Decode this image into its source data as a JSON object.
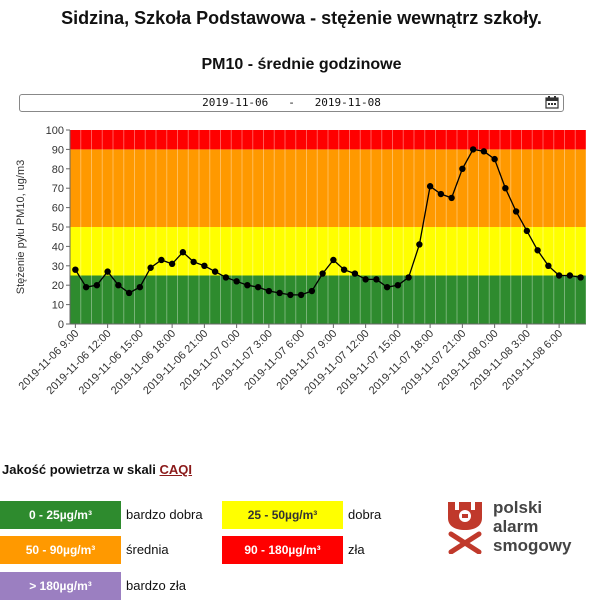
{
  "header": {
    "title": "Sidzina, Szkoła Podstawowa - stężenie wewnątrz szkoły.",
    "subtitle": "PM10 - średnie godzinowe"
  },
  "date_range": {
    "start": "2019-11-06",
    "separator": "-",
    "end": "2019-11-08"
  },
  "chart_data": {
    "type": "line",
    "title": "PM10 - średnie godzinowe",
    "ylabel": "Stężenie pyłu PM10, ug/m3",
    "ylim": [
      0,
      100
    ],
    "yticks": [
      0,
      10,
      20,
      30,
      40,
      50,
      60,
      70,
      80,
      90,
      100
    ],
    "bands": [
      {
        "from": 0,
        "to": 25,
        "color": "#2e8b2e"
      },
      {
        "from": 25,
        "to": 50,
        "color": "#ffff00"
      },
      {
        "from": 50,
        "to": 90,
        "color": "#ff9900"
      },
      {
        "from": 90,
        "to": 100,
        "color": "#ff0000"
      }
    ],
    "xtick_labels": [
      "2019-11-06 9:00",
      "2019-11-06 12:00",
      "2019-11-06 15:00",
      "2019-11-06 18:00",
      "2019-11-06 21:00",
      "2019-11-07 0:00",
      "2019-11-07 3:00",
      "2019-11-07 6:00",
      "2019-11-07 9:00",
      "2019-11-07 12:00",
      "2019-11-07 15:00",
      "2019-11-07 18:00",
      "2019-11-07 21:00",
      "2019-11-08 0:00",
      "2019-11-08 3:00",
      "2019-11-08 6:00"
    ],
    "x_start": "2019-11-06 9:00",
    "x_step_hours": 1,
    "values": [
      28,
      19,
      20,
      27,
      20,
      16,
      19,
      29,
      33,
      31,
      37,
      32,
      30,
      27,
      24,
      22,
      20,
      19,
      17,
      16,
      15,
      15,
      17,
      26,
      33,
      28,
      26,
      23,
      23,
      19,
      20,
      24,
      41,
      71,
      67,
      65,
      80,
      90,
      89,
      85,
      70,
      58,
      48,
      38,
      30,
      25,
      25,
      24
    ],
    "line_color": "#000000",
    "grid": true
  },
  "legend": {
    "heading": "Jakość powietrza w skali",
    "link": "CAQI",
    "items": [
      {
        "range": "0 - 25µg/m³",
        "label": "bardzo dobra",
        "color": "#2e8b2e",
        "text_color": "#ffffff"
      },
      {
        "range": "25 - 50µg/m³",
        "label": "dobra",
        "color": "#ffff00",
        "text_color": "#333333"
      },
      {
        "range": "50 - 90µg/m³",
        "label": "średnia",
        "color": "#ff9900",
        "text_color": "#ffffff"
      },
      {
        "range": "90 - 180µg/m³",
        "label": "zła",
        "color": "#ff0000",
        "text_color": "#ffffff"
      },
      {
        "range": "> 180µg/m³",
        "label": "bardzo zła",
        "color": "#9b7fc1",
        "text_color": "#ffffff"
      }
    ]
  },
  "logo": {
    "line1": "polski",
    "line2": "alarm",
    "line3": "smogowy",
    "color": "#c0392b"
  }
}
